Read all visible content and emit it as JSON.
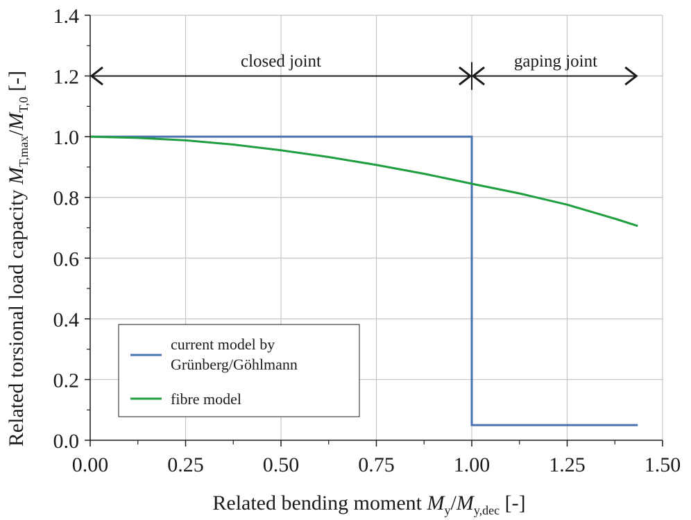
{
  "chart_data": {
    "type": "line",
    "xlabel": {
      "prefix": "Related bending moment ",
      "var1": "M",
      "sub1": "y",
      "sep": "/",
      "var2": "M",
      "sub2": "y,dec",
      "unit": " [-]"
    },
    "ylabel": {
      "prefix": "Related torsional load capacity ",
      "var1": "M",
      "sub1": "T,max",
      "sep": "/",
      "var2": "M",
      "sub2": "T,0",
      "unit": " [-]"
    },
    "xlim": [
      0,
      1.5
    ],
    "ylim": [
      0,
      1.4
    ],
    "xticks": [
      0,
      0.25,
      0.5,
      0.75,
      1.0,
      1.25,
      1.5
    ],
    "xtick_labels": [
      "0.00",
      "0.25",
      "0.50",
      "0.75",
      "1.00",
      "1.25",
      "1.50"
    ],
    "yticks": [
      0,
      0.2,
      0.4,
      0.6,
      0.8,
      1.0,
      1.2,
      1.4
    ],
    "ytick_labels": [
      "0.0",
      "0.2",
      "0.4",
      "0.6",
      "0.8",
      "1.0",
      "1.2",
      "1.4"
    ],
    "grid": true,
    "legend_position": "bottom-left",
    "series": [
      {
        "name_lines": [
          "current model by",
          "Grünberg/Göhlmann"
        ],
        "color": "#4a72b0",
        "x": [
          0,
          1.0,
          1.0,
          1.435
        ],
        "y": [
          1.0,
          1.0,
          0.05,
          0.05
        ]
      },
      {
        "name_lines": [
          "fibre model"
        ],
        "color": "#1e9e3e",
        "x": [
          0,
          0.125,
          0.25,
          0.375,
          0.5,
          0.625,
          0.75,
          0.875,
          1.0,
          1.125,
          1.25,
          1.375,
          1.435
        ],
        "y": [
          1.0,
          0.996,
          0.988,
          0.974,
          0.955,
          0.933,
          0.907,
          0.878,
          0.845,
          0.813,
          0.776,
          0.73,
          0.706
        ]
      }
    ],
    "annotations": [
      {
        "text": "closed joint",
        "x_from": 0,
        "x_to": 1.0,
        "y": 1.2,
        "label_x": 0.5,
        "label_y": 1.24
      },
      {
        "text": "gaping joint",
        "x_from": 1.0,
        "x_to": 1.435,
        "y": 1.2,
        "label_x": 1.22,
        "label_y": 1.24
      }
    ]
  }
}
